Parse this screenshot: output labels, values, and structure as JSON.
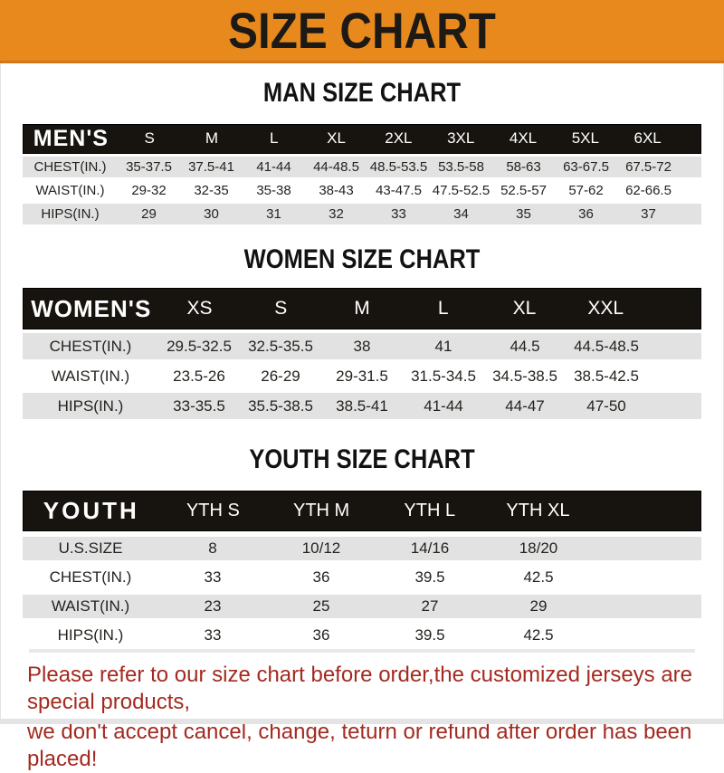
{
  "banner": {
    "title": "SIZE CHART"
  },
  "sections": [
    {
      "id": "man",
      "heading": "MAN SIZE CHART",
      "table": {
        "corner_label": "MEN'S",
        "columns": [
          "S",
          "M",
          "L",
          "XL",
          "2XL",
          "3XL",
          "4XL",
          "5XL",
          "6XL"
        ],
        "rows": [
          {
            "label": "CHEST(IN.)",
            "values": [
              "35-37.5",
              "37.5-41",
              "41-44",
              "44-48.5",
              "48.5-53.5",
              "53.5-58",
              "58-63",
              "63-67.5",
              "67.5-72"
            ]
          },
          {
            "label": "WAIST(IN.)",
            "values": [
              "29-32",
              "32-35",
              "35-38",
              "38-43",
              "43-47.5",
              "47.5-52.5",
              "52.5-57",
              "57-62",
              "62-66.5"
            ]
          },
          {
            "label": "HIPS(IN.)",
            "values": [
              "29",
              "30",
              "31",
              "32",
              "33",
              "34",
              "35",
              "36",
              "37"
            ]
          }
        ]
      }
    },
    {
      "id": "women",
      "heading": "WOMEN SIZE CHART",
      "table": {
        "corner_label": "WOMEN'S",
        "columns": [
          "XS",
          "S",
          "M",
          "L",
          "XL",
          "XXL"
        ],
        "rows": [
          {
            "label": "CHEST(IN.)",
            "values": [
              "29.5-32.5",
              "32.5-35.5",
              "38",
              "41",
              "44.5",
              "44.5-48.5"
            ]
          },
          {
            "label": "WAIST(IN.)",
            "values": [
              "23.5-26",
              "26-29",
              "29-31.5",
              "31.5-34.5",
              "34.5-38.5",
              "38.5-42.5"
            ]
          },
          {
            "label": "HIPS(IN.)",
            "values": [
              "33-35.5",
              "35.5-38.5",
              "38.5-41",
              "41-44",
              "44-47",
              "47-50"
            ]
          }
        ]
      }
    },
    {
      "id": "youth",
      "heading": "YOUTH SIZE CHART",
      "table": {
        "corner_label": "YOUTH",
        "columns": [
          "YTH S",
          "YTH M",
          "YTH L",
          "YTH XL"
        ],
        "rows": [
          {
            "label": "U.S.SIZE",
            "values": [
              "8",
              "10/12",
              "14/16",
              "18/20"
            ]
          },
          {
            "label": "CHEST(IN.)",
            "values": [
              "33",
              "36",
              "39.5",
              "42.5"
            ]
          },
          {
            "label": "WAIST(IN.)",
            "values": [
              "23",
              "25",
              "27",
              "29"
            ]
          },
          {
            "label": "HIPS(IN.)",
            "values": [
              "33",
              "36",
              "39.5",
              "42.5"
            ]
          }
        ]
      }
    }
  ],
  "footer": {
    "line1": "Please refer to our size chart before order,the customized jerseys are special products,",
    "line2": "we don't accept cancel, change, teturn or refund after order has been placed!"
  },
  "colors": {
    "banner_orange": "#E8891D",
    "banner_border": "#d2771a",
    "header_black": "#17140f",
    "row_gray": "#E2E2E2",
    "row_white": "#ffffff",
    "heading_black": "#121212",
    "footer_red": "#A32A20"
  }
}
